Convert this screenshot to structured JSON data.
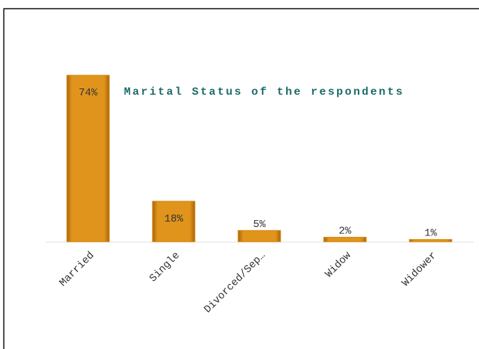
{
  "chart_data": {
    "type": "bar",
    "title": "Marital Status of the respondents",
    "categories": [
      "Married",
      "Single",
      "Divorced/Sep…",
      "Widow",
      "Widower"
    ],
    "values": [
      74,
      18,
      5,
      2,
      1
    ],
    "value_labels": [
      "74%",
      "18%",
      "5%",
      "2%",
      "1%"
    ],
    "color": "#d4880f"
  }
}
